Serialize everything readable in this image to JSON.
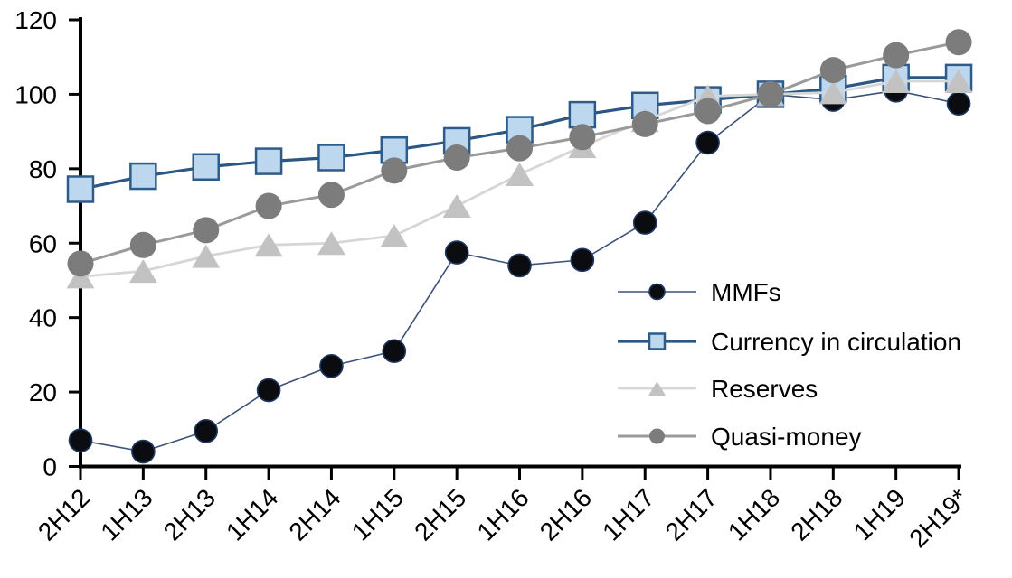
{
  "chart_data": {
    "type": "line",
    "title": "",
    "xlabel": "",
    "ylabel": "",
    "categories": [
      "2H12",
      "1H13",
      "2H13",
      "1H14",
      "2H14",
      "1H15",
      "2H15",
      "1H16",
      "2H16",
      "1H17",
      "2H17",
      "1H18",
      "2H18",
      "1H19",
      "2H19*"
    ],
    "series": [
      {
        "name": "MMFs",
        "marker": "circle",
        "line_color": "#3d5178",
        "marker_fill": "#0a0c10",
        "marker_stroke": "#1f3864",
        "values": [
          7,
          4,
          9.5,
          20.5,
          27,
          31,
          57.5,
          54,
          55.5,
          65.5,
          87,
          100,
          98.5,
          101,
          97.5
        ]
      },
      {
        "name": "Currency in circulation",
        "marker": "square",
        "line_color": "#2a5783",
        "marker_fill": "#bdd7ee",
        "marker_stroke": "#2e5c8a",
        "values": [
          74.5,
          78,
          80.5,
          82,
          83,
          85,
          87.5,
          90.5,
          94.5,
          97,
          98.5,
          100,
          101.5,
          104.5,
          104.5
        ]
      },
      {
        "name": "Reserves",
        "marker": "triangle",
        "line_color": "#d6d6d6",
        "marker_fill": "#c2c2c2",
        "marker_stroke": "",
        "values": [
          51,
          52.5,
          56.5,
          59.5,
          60,
          62,
          70,
          78.5,
          86,
          93,
          99.5,
          100,
          100.5,
          103.5,
          103.5
        ]
      },
      {
        "name": "Quasi-money",
        "marker": "circle",
        "line_color": "#9a9a9a",
        "marker_fill": "#7c7c7c",
        "marker_stroke": "",
        "values": [
          54.5,
          59.5,
          63.5,
          70,
          73,
          79.5,
          83,
          85.5,
          88.5,
          92,
          95.5,
          100,
          106.5,
          110.5,
          114
        ]
      }
    ],
    "ylim": [
      0,
      120
    ],
    "yticks": [
      0,
      20,
      40,
      60,
      80,
      100,
      120
    ],
    "grid": false,
    "axis_color": "#000000",
    "legend_position": "center-right",
    "legend_entries": [
      "MMFs",
      "Currency in circulation",
      "Reserves",
      "Quasi-money"
    ]
  }
}
